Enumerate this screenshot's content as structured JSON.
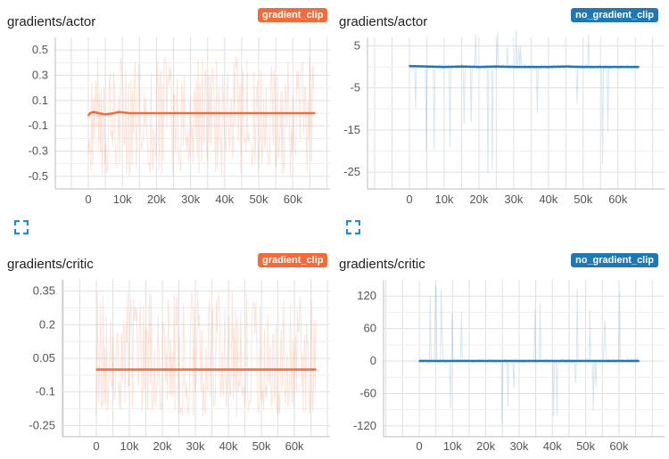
{
  "colors": {
    "gradient_clip": "#f26b3a",
    "no_gradient_clip": "#1f77b4"
  },
  "panels": [
    {
      "title": "gradients/actor",
      "run": "gradient_clip"
    },
    {
      "title": "gradients/actor",
      "run": "no_gradient_clip"
    },
    {
      "title": "gradients/critic",
      "run": "gradient_clip"
    },
    {
      "title": "gradients/critic",
      "run": "no_gradient_clip"
    }
  ],
  "chart_data": [
    {
      "type": "line",
      "title": "gradients/actor",
      "xlim": [
        0,
        67000
      ],
      "ylim": [
        -0.6,
        0.6
      ],
      "x_ticks": [
        0,
        10000,
        20000,
        30000,
        40000,
        50000,
        60000
      ],
      "x_tick_labels": [
        "0",
        "10k",
        "20k",
        "30k",
        "40k",
        "50k",
        "60k"
      ],
      "y_ticks": [
        0.5,
        0.3,
        0.1,
        -0.1,
        -0.3,
        -0.5
      ],
      "y_tick_labels": [
        "0.5",
        "0.3",
        "0.1",
        "-0.1",
        "-0.3",
        "-0.5"
      ],
      "grid": true,
      "series": [
        {
          "name": "gradient_clip",
          "x": [
            0,
            500,
            1500,
            3000,
            5000,
            7500,
            9000,
            12000,
            17000,
            20000,
            25000,
            30000,
            35000,
            40000,
            45000,
            50000,
            55000,
            60000,
            65000,
            66500
          ],
          "y": [
            -0.02,
            0.0,
            0.01,
            0.0,
            -0.01,
            0.0,
            0.01,
            0.0,
            0.0,
            0.0,
            0.0,
            0.0,
            0.0,
            0.0,
            0.0,
            0.0,
            0.0,
            0.0,
            0.0,
            0.0
          ],
          "raw_range": [
            -0.5,
            0.45
          ]
        }
      ]
    },
    {
      "type": "line",
      "title": "gradients/actor",
      "xlim": [
        0,
        67000
      ],
      "ylim": [
        -29,
        7
      ],
      "x_ticks": [
        0,
        10000,
        20000,
        30000,
        40000,
        50000,
        60000
      ],
      "x_tick_labels": [
        "0",
        "10k",
        "20k",
        "30k",
        "40k",
        "50k",
        "60k"
      ],
      "y_ticks": [
        5,
        -5,
        -15,
        -25
      ],
      "y_tick_labels": [
        "5",
        "-5",
        "-15",
        "-25"
      ],
      "grid": true,
      "series": [
        {
          "name": "no_gradient_clip",
          "x": [
            0,
            5000,
            10000,
            15000,
            20000,
            25000,
            30000,
            35000,
            40000,
            45000,
            50000,
            55000,
            60000,
            66000
          ],
          "y": [
            0.2,
            0.1,
            0.0,
            0.1,
            0.0,
            0.1,
            0.0,
            0.0,
            0.0,
            0.1,
            0.0,
            0.0,
            0.0,
            0.0
          ],
          "raw_range": [
            -27,
            10
          ]
        }
      ]
    },
    {
      "type": "line",
      "title": "gradients/critic",
      "xlim": [
        0,
        67000
      ],
      "ylim": [
        -0.3,
        0.4
      ],
      "x_ticks": [
        0,
        10000,
        20000,
        30000,
        40000,
        50000,
        60000
      ],
      "x_tick_labels": [
        "0",
        "10k",
        "20k",
        "30k",
        "40k",
        "50k",
        "60k"
      ],
      "y_ticks": [
        0.35,
        0.2,
        0.05,
        -0.1,
        -0.25
      ],
      "y_tick_labels": [
        "0.35",
        "0.2",
        "0.05",
        "-0.1",
        "-0.25"
      ],
      "grid": true,
      "series": [
        {
          "name": "gradient_clip",
          "x": [
            0,
            5000,
            10000,
            15000,
            20000,
            25000,
            30000,
            35000,
            40000,
            45000,
            50000,
            55000,
            60000,
            66500
          ],
          "y": [
            0.0,
            0.0,
            0.0,
            0.0,
            0.0,
            0.0,
            0.0,
            0.0,
            0.0,
            0.0,
            0.0,
            0.0,
            0.0,
            0.0
          ],
          "raw_range": [
            -0.22,
            0.35
          ]
        }
      ]
    },
    {
      "type": "line",
      "title": "gradients/critic",
      "xlim": [
        0,
        67000
      ],
      "ylim": [
        -140,
        150
      ],
      "x_ticks": [
        0,
        10000,
        20000,
        30000,
        40000,
        50000,
        60000
      ],
      "x_tick_labels": [
        "0",
        "10k",
        "20k",
        "30k",
        "40k",
        "50k",
        "60k"
      ],
      "y_ticks": [
        120,
        60,
        0,
        -60,
        -120
      ],
      "y_tick_labels": [
        "120",
        "60",
        "0",
        "-60",
        "-120"
      ],
      "grid": true,
      "series": [
        {
          "name": "no_gradient_clip",
          "x": [
            0,
            5000,
            10000,
            15000,
            20000,
            25000,
            30000,
            35000,
            40000,
            45000,
            50000,
            55000,
            60000,
            66000
          ],
          "y": [
            0,
            0,
            0,
            0,
            0,
            0,
            0,
            0,
            0,
            0,
            0,
            0,
            0,
            0
          ],
          "raw_range": [
            -120,
            140
          ]
        }
      ]
    }
  ]
}
